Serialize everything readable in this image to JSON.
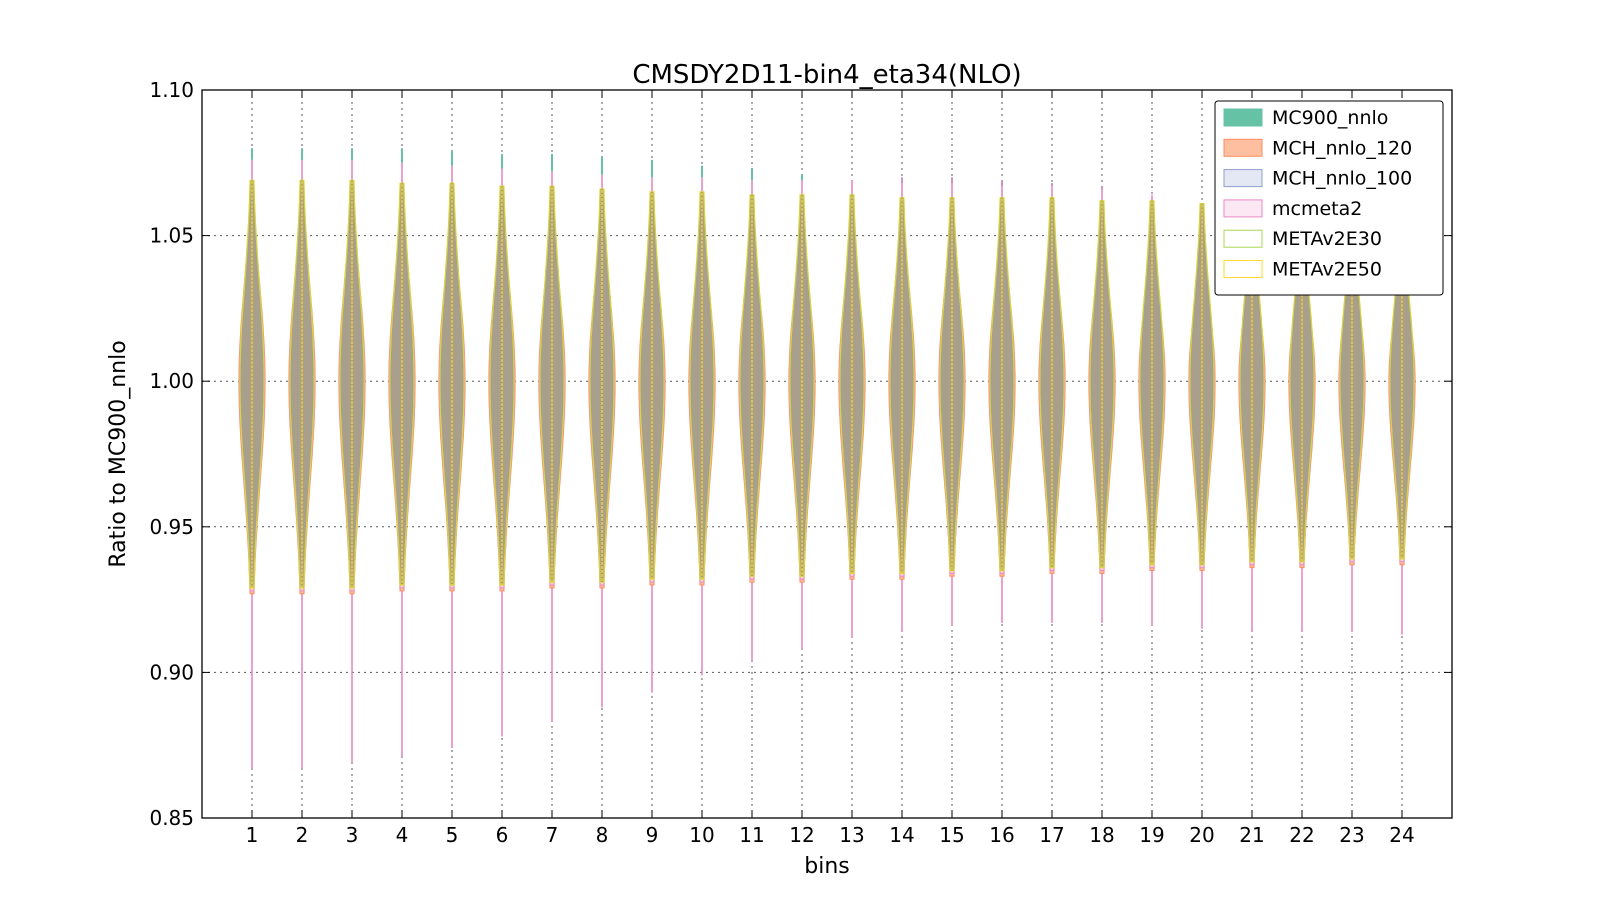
{
  "chart_data": {
    "type": "violin",
    "title": "CMSDY2D11-bin4_eta34(NLO)",
    "xlabel": "bins",
    "ylabel": "Ratio to MC900_nnlo",
    "ylim": [
      0.85,
      1.1
    ],
    "xlim": [
      0,
      25
    ],
    "grid": true,
    "legend_position": "top-right",
    "x_ticks": [
      "1",
      "2",
      "3",
      "4",
      "5",
      "6",
      "7",
      "8",
      "9",
      "10",
      "11",
      "12",
      "13",
      "14",
      "15",
      "16",
      "17",
      "18",
      "19",
      "20",
      "21",
      "22",
      "23",
      "24"
    ],
    "y_ticks": [
      "0.85",
      "0.90",
      "0.95",
      "1.00",
      "1.05",
      "1.10"
    ],
    "y_tick_values": [
      0.85,
      0.9,
      0.95,
      1.0,
      1.05,
      1.1
    ],
    "series": [
      {
        "name": "MC900_nnlo",
        "color": "#66c2a5",
        "fill": "#66c2a5",
        "fill_opacity": 1.0
      },
      {
        "name": "MCH_nnlo_120",
        "color": "#fc8d62",
        "fill": "#fdbf9f",
        "fill_opacity": 1.0
      },
      {
        "name": "MCH_nnlo_100",
        "color": "#8da0cb",
        "fill": "#e3e8f4",
        "fill_opacity": 1.0
      },
      {
        "name": "mcmeta2",
        "color": "#e78ac3",
        "fill": "#fbe8f3",
        "fill_opacity": 1.0
      },
      {
        "name": "METAv2E30",
        "color": "#a6d854",
        "fill": "#ffffff",
        "fill_opacity": 1.0
      },
      {
        "name": "METAv2E50",
        "color": "#ffd92f",
        "fill": "#ffffff",
        "fill_opacity": 1.0
      }
    ],
    "violin_body_color": "#a89f8d",
    "bins": [
      {
        "bin": 1,
        "mc900_max": 1.08,
        "mch_max": 1.076,
        "meta_max": 1.069,
        "meta_min": 0.929,
        "mcmeta2_min": 0.867
      },
      {
        "bin": 2,
        "mc900_max": 1.08,
        "mch_max": 1.076,
        "meta_max": 1.069,
        "meta_min": 0.929,
        "mcmeta2_min": 0.867
      },
      {
        "bin": 3,
        "mc900_max": 1.08,
        "mch_max": 1.076,
        "meta_max": 1.069,
        "meta_min": 0.929,
        "mcmeta2_min": 0.869
      },
      {
        "bin": 4,
        "mc900_max": 1.08,
        "mch_max": 1.075,
        "meta_max": 1.068,
        "meta_min": 0.93,
        "mcmeta2_min": 0.871
      },
      {
        "bin": 5,
        "mc900_max": 1.079,
        "mch_max": 1.074,
        "meta_max": 1.068,
        "meta_min": 0.93,
        "mcmeta2_min": 0.874
      },
      {
        "bin": 6,
        "mc900_max": 1.078,
        "mch_max": 1.073,
        "meta_max": 1.067,
        "meta_min": 0.93,
        "mcmeta2_min": 0.878
      },
      {
        "bin": 7,
        "mc900_max": 1.078,
        "mch_max": 1.072,
        "meta_max": 1.067,
        "meta_min": 0.931,
        "mcmeta2_min": 0.883
      },
      {
        "bin": 8,
        "mc900_max": 1.077,
        "mch_max": 1.071,
        "meta_max": 1.066,
        "meta_min": 0.931,
        "mcmeta2_min": 0.888
      },
      {
        "bin": 9,
        "mc900_max": 1.076,
        "mch_max": 1.07,
        "meta_max": 1.065,
        "meta_min": 0.932,
        "mcmeta2_min": 0.893
      },
      {
        "bin": 10,
        "mc900_max": 1.074,
        "mch_max": 1.07,
        "meta_max": 1.065,
        "meta_min": 0.932,
        "mcmeta2_min": 0.899
      },
      {
        "bin": 11,
        "mc900_max": 1.073,
        "mch_max": 1.069,
        "meta_max": 1.064,
        "meta_min": 0.933,
        "mcmeta2_min": 0.904
      },
      {
        "bin": 12,
        "mc900_max": 1.071,
        "mch_max": 1.069,
        "meta_max": 1.064,
        "meta_min": 0.933,
        "mcmeta2_min": 0.908
      },
      {
        "bin": 13,
        "mc900_max": 1.069,
        "mch_max": 1.069,
        "meta_max": 1.064,
        "meta_min": 0.934,
        "mcmeta2_min": 0.912
      },
      {
        "bin": 14,
        "mc900_max": 1.068,
        "mch_max": 1.07,
        "meta_max": 1.063,
        "meta_min": 0.934,
        "mcmeta2_min": 0.914
      },
      {
        "bin": 15,
        "mc900_max": 1.068,
        "mch_max": 1.07,
        "meta_max": 1.063,
        "meta_min": 0.935,
        "mcmeta2_min": 0.916
      },
      {
        "bin": 16,
        "mc900_max": 1.067,
        "mch_max": 1.069,
        "meta_max": 1.063,
        "meta_min": 0.935,
        "mcmeta2_min": 0.917
      },
      {
        "bin": 17,
        "mc900_max": 1.067,
        "mch_max": 1.068,
        "meta_max": 1.063,
        "meta_min": 0.936,
        "mcmeta2_min": 0.917
      },
      {
        "bin": 18,
        "mc900_max": 1.066,
        "mch_max": 1.067,
        "meta_max": 1.062,
        "meta_min": 0.936,
        "mcmeta2_min": 0.917
      },
      {
        "bin": 19,
        "mc900_max": 1.064,
        "mch_max": 1.064,
        "meta_max": 1.062,
        "meta_min": 0.937,
        "mcmeta2_min": 0.916
      },
      {
        "bin": 20,
        "mc900_max": 1.061,
        "mch_max": 1.061,
        "meta_max": 1.061,
        "meta_min": 0.937,
        "mcmeta2_min": 0.915
      },
      {
        "bin": 21,
        "mc900_max": 1.059,
        "mch_max": 1.06,
        "meta_max": 1.06,
        "meta_min": 0.938,
        "mcmeta2_min": 0.914
      },
      {
        "bin": 22,
        "mc900_max": 1.058,
        "mch_max": 1.059,
        "meta_max": 1.059,
        "meta_min": 0.938,
        "mcmeta2_min": 0.914
      },
      {
        "bin": 23,
        "mc900_max": 1.057,
        "mch_max": 1.058,
        "meta_max": 1.058,
        "meta_min": 0.939,
        "mcmeta2_min": 0.914
      },
      {
        "bin": 24,
        "mc900_max": 1.056,
        "mch_max": 1.057,
        "meta_max": 1.057,
        "meta_min": 0.939,
        "mcmeta2_min": 0.913
      }
    ]
  }
}
